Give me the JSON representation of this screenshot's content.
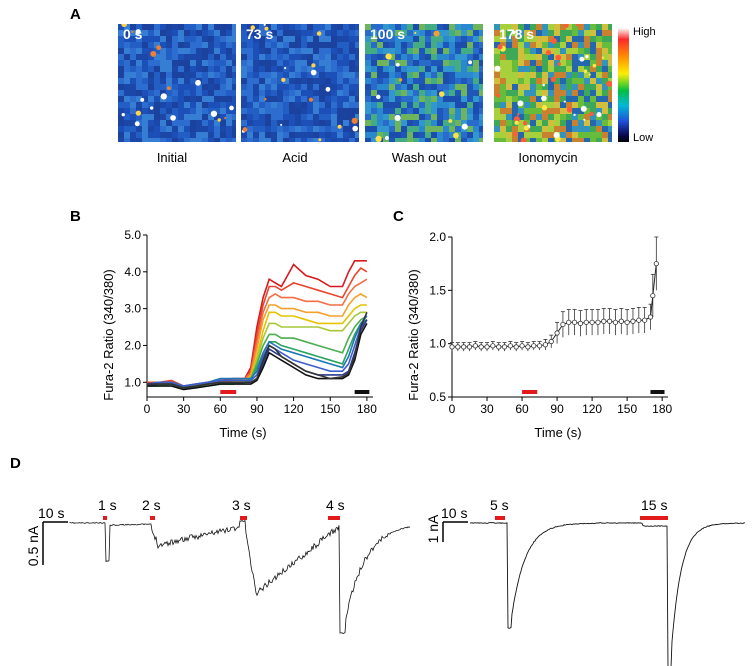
{
  "panels": {
    "a": "A",
    "b": "B",
    "c": "C",
    "d": "D"
  },
  "panel_a": {
    "images": [
      {
        "time": "0 s",
        "caption": "Initial"
      },
      {
        "time": "73 s",
        "caption": "Acid"
      },
      {
        "time": "100 s",
        "caption": "Wash out"
      },
      {
        "time": "178 s",
        "caption": "Ionomycin"
      }
    ],
    "colorbar": {
      "high": "High",
      "low": "Low"
    }
  },
  "chart_data": [
    {
      "panel": "B",
      "type": "line",
      "xlabel": "Time (s)",
      "ylabel": "Fura-2 Ratio (340/380)",
      "xlim": [
        0,
        185
      ],
      "ylim": [
        0.6,
        5.0
      ],
      "xticks": [
        "0",
        "30",
        "60",
        "90",
        "120",
        "150",
        "180"
      ],
      "yticks": [
        "1.0",
        "2.0",
        "3.0",
        "4.0",
        "5.0"
      ],
      "x": [
        0,
        10,
        20,
        30,
        40,
        50,
        60,
        70,
        80,
        85,
        90,
        95,
        100,
        105,
        110,
        120,
        130,
        140,
        150,
        160,
        165,
        170,
        175,
        180
      ],
      "series": [
        {
          "color": "#d7191c",
          "values": [
            0.95,
            1.0,
            1.0,
            0.85,
            0.9,
            1.0,
            1.05,
            1.1,
            1.1,
            1.4,
            2.5,
            3.3,
            3.8,
            3.7,
            3.6,
            4.2,
            3.9,
            3.8,
            3.6,
            3.6,
            4.0,
            4.3,
            4.3,
            4.3
          ]
        },
        {
          "color": "#e8452b",
          "values": [
            1.0,
            1.0,
            1.05,
            0.9,
            0.95,
            1.0,
            1.05,
            1.05,
            1.1,
            1.3,
            2.3,
            3.1,
            3.6,
            3.6,
            3.5,
            3.7,
            3.6,
            3.5,
            3.4,
            3.3,
            3.6,
            3.9,
            4.1,
            4.0
          ]
        },
        {
          "color": "#f46d43",
          "values": [
            0.95,
            1.0,
            1.0,
            0.9,
            0.95,
            1.0,
            1.0,
            1.05,
            1.1,
            1.25,
            2.1,
            2.9,
            3.3,
            3.4,
            3.3,
            3.3,
            3.2,
            3.2,
            3.1,
            3.1,
            3.4,
            3.6,
            3.7,
            3.8
          ]
        },
        {
          "color": "#f2a12b",
          "values": [
            0.9,
            0.95,
            1.0,
            0.85,
            0.9,
            0.95,
            1.0,
            1.0,
            1.05,
            1.2,
            1.9,
            2.7,
            3.1,
            3.1,
            3.0,
            3.0,
            2.9,
            2.9,
            2.8,
            2.8,
            3.1,
            3.3,
            3.4,
            3.3
          ]
        },
        {
          "color": "#e6c200",
          "values": [
            0.9,
            0.95,
            0.95,
            0.85,
            0.9,
            0.95,
            1.0,
            1.0,
            1.05,
            1.15,
            1.7,
            2.4,
            2.9,
            2.9,
            2.8,
            2.8,
            2.7,
            2.6,
            2.6,
            2.6,
            2.8,
            3.0,
            3.1,
            3.1
          ]
        },
        {
          "color": "#a6c83a",
          "values": [
            0.9,
            0.9,
            0.95,
            0.85,
            0.9,
            0.95,
            1.0,
            1.0,
            1.0,
            1.1,
            1.6,
            2.2,
            2.6,
            2.6,
            2.5,
            2.5,
            2.5,
            2.5,
            2.4,
            2.4,
            2.6,
            2.8,
            2.9,
            2.9
          ]
        },
        {
          "color": "#4bae4f",
          "values": [
            0.9,
            0.9,
            0.95,
            0.85,
            0.9,
            0.9,
            0.95,
            1.0,
            1.0,
            1.1,
            1.5,
            2.0,
            2.3,
            2.3,
            2.2,
            2.2,
            2.1,
            2.0,
            1.9,
            1.8,
            2.2,
            2.5,
            2.7,
            2.8
          ]
        },
        {
          "color": "#2ca25f",
          "values": [
            0.9,
            0.9,
            0.9,
            0.85,
            0.85,
            0.9,
            0.95,
            0.95,
            1.0,
            1.05,
            1.4,
            1.8,
            2.1,
            2.1,
            2.0,
            1.9,
            1.8,
            1.7,
            1.6,
            1.5,
            1.9,
            2.3,
            2.6,
            2.7
          ]
        },
        {
          "color": "#1f78b4",
          "values": [
            0.95,
            1.0,
            1.0,
            0.9,
            0.95,
            1.0,
            1.1,
            1.1,
            1.1,
            1.1,
            1.3,
            1.8,
            2.1,
            2.0,
            1.9,
            1.8,
            1.7,
            1.6,
            1.5,
            1.4,
            1.7,
            2.2,
            2.6,
            2.8
          ]
        },
        {
          "color": "#3a5fcd",
          "values": [
            0.95,
            1.0,
            1.0,
            0.9,
            0.95,
            1.0,
            1.05,
            1.05,
            1.05,
            1.05,
            1.2,
            1.7,
            2.0,
            1.9,
            1.8,
            1.6,
            1.5,
            1.4,
            1.3,
            1.3,
            1.5,
            2.0,
            2.5,
            2.7
          ]
        },
        {
          "color": "#2b3a8c",
          "values": [
            0.9,
            0.95,
            0.95,
            0.85,
            0.9,
            0.95,
            1.0,
            1.0,
            1.0,
            1.0,
            1.1,
            1.5,
            1.9,
            1.8,
            1.7,
            1.5,
            1.3,
            1.2,
            1.2,
            1.2,
            1.3,
            1.8,
            2.4,
            2.7
          ]
        },
        {
          "color": "#111111",
          "values": [
            0.9,
            0.9,
            0.9,
            0.8,
            0.85,
            0.9,
            0.95,
            0.95,
            0.95,
            0.95,
            1.05,
            1.4,
            1.8,
            1.7,
            1.6,
            1.4,
            1.2,
            1.1,
            1.1,
            1.1,
            1.2,
            1.6,
            2.3,
            2.6
          ]
        },
        {
          "color": "#333333",
          "values": [
            0.95,
            0.95,
            0.95,
            0.85,
            0.9,
            0.95,
            1.0,
            1.0,
            1.0,
            1.0,
            1.1,
            1.6,
            2.0,
            1.9,
            1.7,
            1.5,
            1.3,
            1.2,
            1.1,
            1.15,
            1.25,
            1.7,
            2.5,
            2.9
          ]
        }
      ],
      "bars": [
        {
          "color": "#e31a1c",
          "start": 60,
          "end": 73
        },
        {
          "color": "#111111",
          "start": 170,
          "end": 182
        }
      ]
    },
    {
      "panel": "C",
      "type": "line",
      "xlabel": "Time (s)",
      "ylabel": "Fura-2 Ratio (340/380)",
      "xlim": [
        0,
        185
      ],
      "ylim": [
        0.5,
        2.0
      ],
      "xticks": [
        "0",
        "30",
        "60",
        "90",
        "120",
        "150",
        "180"
      ],
      "yticks": [
        "0.5",
        "1.0",
        "1.5",
        "2.0"
      ],
      "x": [
        0,
        5,
        10,
        15,
        20,
        25,
        30,
        35,
        40,
        45,
        50,
        55,
        60,
        65,
        70,
        75,
        80,
        85,
        90,
        95,
        100,
        105,
        110,
        115,
        120,
        125,
        130,
        135,
        140,
        145,
        150,
        155,
        160,
        165,
        170,
        172,
        175
      ],
      "series": [
        {
          "name": "",
          "color": "#222222",
          "values": [
            0.97,
            0.97,
            0.97,
            0.97,
            0.98,
            0.97,
            0.97,
            0.98,
            0.97,
            0.97,
            0.98,
            0.97,
            0.98,
            0.97,
            0.98,
            0.98,
            0.99,
            1.02,
            1.1,
            1.18,
            1.2,
            1.2,
            1.19,
            1.2,
            1.2,
            1.2,
            1.21,
            1.21,
            1.2,
            1.21,
            1.2,
            1.21,
            1.22,
            1.22,
            1.25,
            1.45,
            1.75
          ],
          "errors": [
            0.04,
            0.04,
            0.04,
            0.04,
            0.04,
            0.04,
            0.04,
            0.04,
            0.04,
            0.04,
            0.04,
            0.04,
            0.04,
            0.04,
            0.04,
            0.04,
            0.05,
            0.06,
            0.1,
            0.12,
            0.12,
            0.12,
            0.12,
            0.12,
            0.12,
            0.12,
            0.12,
            0.12,
            0.12,
            0.12,
            0.12,
            0.12,
            0.12,
            0.12,
            0.12,
            0.2,
            0.25
          ]
        }
      ],
      "bars": [
        {
          "color": "#e31a1c",
          "start": 60,
          "end": 73
        },
        {
          "color": "#111111",
          "start": 170,
          "end": 182
        }
      ]
    }
  ],
  "panel_d": {
    "left": {
      "scale_time": "10 s",
      "scale_current": "0.5 nA",
      "pulses": [
        "1 s",
        "2 s",
        "3 s",
        "4 s"
      ]
    },
    "right": {
      "scale_time": "10 s",
      "scale_current": "1 nA",
      "pulses": [
        "5 s",
        "15 s"
      ]
    },
    "colors": {
      "pulse": "#e31a1c",
      "trace": "#111111"
    }
  }
}
